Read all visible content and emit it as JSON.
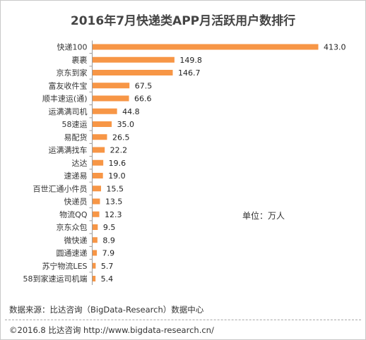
{
  "chart_data": {
    "type": "bar",
    "orientation": "horizontal",
    "title": "2016年7月快递类APP月活跃用户数排行",
    "unit_note": "单位：万人",
    "categories": [
      "快递100",
      "裹裹",
      "京东到家",
      "富友收件宝",
      "顺丰速运(通)",
      "运满满司机",
      "58速运",
      "易配货",
      "运满满找车",
      "达达",
      "速递易",
      "百世汇通小件员",
      "快递员",
      "物流QQ",
      "京东众包",
      "微快递",
      "圆通速递",
      "苏宁物流LES",
      "58到家速运司机端"
    ],
    "series": [
      {
        "values": [
          413.0,
          149.8,
          146.7,
          67.5,
          66.6,
          44.8,
          35.0,
          26.5,
          22.2,
          19.6,
          19.0,
          15.5,
          13.5,
          12.3,
          9.5,
          8.9,
          7.9,
          5.7,
          5.4
        ]
      }
    ],
    "value_labels": [
      "413.0",
      "149.8",
      "146.7",
      "67.5",
      "66.6",
      "44.8",
      "35.0",
      "26.5",
      "22.2",
      "19.6",
      "19.0",
      "15.5",
      "13.5",
      "12.3",
      "9.5",
      "8.9",
      "7.9",
      "5.7",
      "5.4"
    ],
    "xlim": [
      0,
      413.0
    ],
    "bar_color": "#f79646",
    "grid": false,
    "legend": "none"
  },
  "footer": {
    "source": "数据来源：比达咨询（BigData-Research）数据中心",
    "copyright": "©2016.8  比达咨询  http://www.bigdata-research.cn/"
  }
}
